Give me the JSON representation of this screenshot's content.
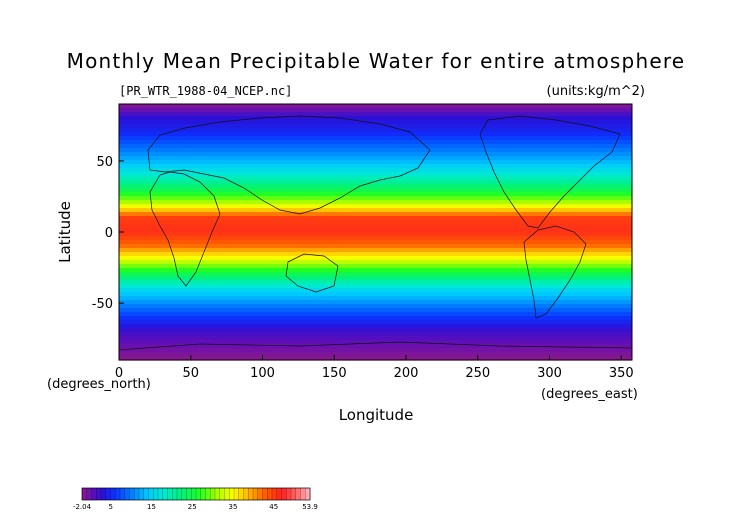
{
  "chart_data": {
    "type": "heatmap",
    "title": "Monthly Mean Precipitable Water for entire atmosphere",
    "subtitle": "[PR_WTR_1988-04_NCEP.nc]",
    "units_label": "(units:kg/m^2)",
    "xlabel": "Longitude",
    "ylabel": "Latitude",
    "x_unit_label": "(degrees_east)",
    "y_unit_label": "(degrees_north)",
    "xlim": [
      0,
      357.5
    ],
    "ylim": [
      -90,
      90
    ],
    "x_ticks": [
      0,
      50,
      100,
      150,
      200,
      250,
      300,
      350
    ],
    "y_ticks": [
      50,
      0,
      -50
    ],
    "lat_profile": [
      {
        "lat": 90,
        "value": -2.04
      },
      {
        "lat": 80,
        "value": 3
      },
      {
        "lat": 70,
        "value": 5
      },
      {
        "lat": 60,
        "value": 9
      },
      {
        "lat": 50,
        "value": 13
      },
      {
        "lat": 40,
        "value": 18
      },
      {
        "lat": 30,
        "value": 24
      },
      {
        "lat": 20,
        "value": 32
      },
      {
        "lat": 10,
        "value": 45
      },
      {
        "lat": 0,
        "value": 46
      },
      {
        "lat": -10,
        "value": 42
      },
      {
        "lat": -20,
        "value": 33
      },
      {
        "lat": -30,
        "value": 24
      },
      {
        "lat": -40,
        "value": 16
      },
      {
        "lat": -50,
        "value": 11
      },
      {
        "lat": -60,
        "value": 6
      },
      {
        "lat": -70,
        "value": 2
      },
      {
        "lat": -80,
        "value": 0
      },
      {
        "lat": -90,
        "value": -2.04
      }
    ],
    "colorbar": {
      "min": -2.04,
      "max": 53.9,
      "labels": [
        "-2.04",
        "5",
        "15",
        "25",
        "35",
        "45",
        "53.9"
      ],
      "label_values": [
        -2.04,
        5,
        15,
        25,
        35,
        45,
        53.9
      ]
    },
    "colormap": [
      {
        "value": -2.04,
        "color": "#8a1a8a"
      },
      {
        "value": 0,
        "color": "#6a0fb0"
      },
      {
        "value": 3,
        "color": "#2a10d8"
      },
      {
        "value": 6,
        "color": "#0b33ff"
      },
      {
        "value": 10,
        "color": "#007bff"
      },
      {
        "value": 14,
        "color": "#00c8ff"
      },
      {
        "value": 18,
        "color": "#00ecd0"
      },
      {
        "value": 22,
        "color": "#00f080"
      },
      {
        "value": 27,
        "color": "#22ff22"
      },
      {
        "value": 31,
        "color": "#a6ff00"
      },
      {
        "value": 35,
        "color": "#ffff00"
      },
      {
        "value": 39,
        "color": "#ffb000"
      },
      {
        "value": 43,
        "color": "#ff5a00"
      },
      {
        "value": 47,
        "color": "#ff2020"
      },
      {
        "value": 51,
        "color": "#ff7070"
      },
      {
        "value": 53.9,
        "color": "#ffb8c8"
      }
    ]
  }
}
